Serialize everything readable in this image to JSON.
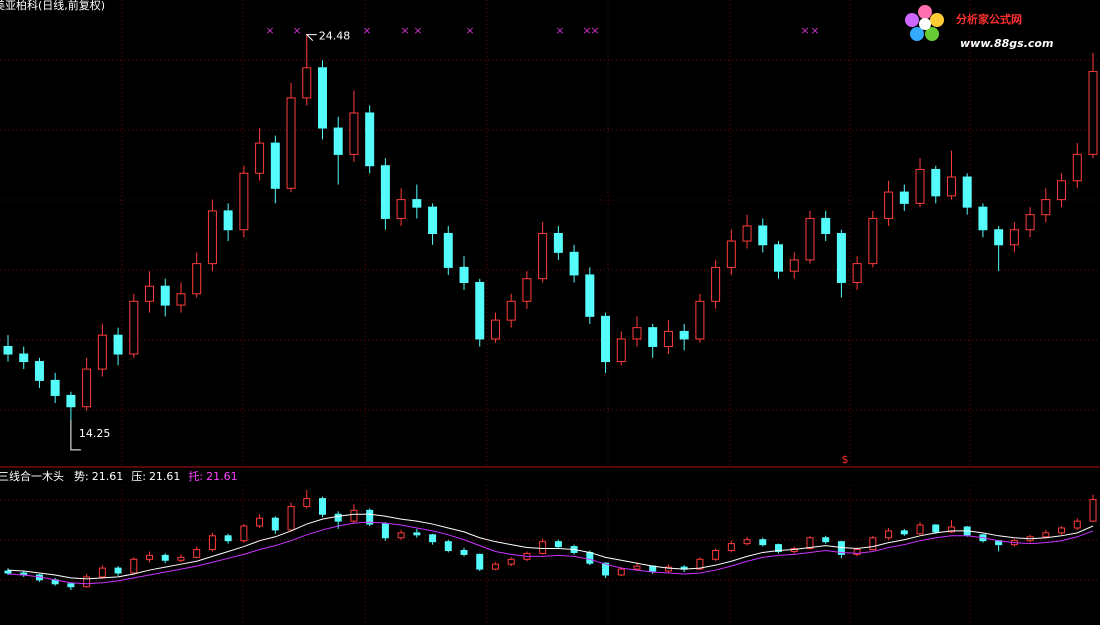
{
  "chart_data": {
    "type": "candlestick",
    "title": "美亚柏科(日线,前复权)",
    "logo": {
      "name": "分析家公式网",
      "url": "www.88gs.com"
    },
    "ylim": [
      13.0,
      25.4
    ],
    "up_color": "#ff3c3c",
    "down_color": "#54fcfc",
    "candles": [
      [
        16.2,
        16.5,
        15.8,
        16.0
      ],
      [
        16.0,
        16.2,
        15.6,
        15.8
      ],
      [
        15.8,
        15.9,
        15.1,
        15.3
      ],
      [
        15.3,
        15.5,
        14.7,
        14.9
      ],
      [
        14.9,
        15.0,
        14.25,
        14.6
      ],
      [
        14.6,
        15.9,
        14.5,
        15.6
      ],
      [
        15.6,
        16.8,
        15.4,
        16.5
      ],
      [
        16.5,
        16.7,
        15.7,
        16.0
      ],
      [
        16.0,
        17.6,
        15.9,
        17.4
      ],
      [
        17.4,
        18.2,
        17.1,
        17.8
      ],
      [
        17.8,
        18.0,
        17.0,
        17.3
      ],
      [
        17.3,
        17.9,
        17.1,
        17.6
      ],
      [
        17.6,
        18.7,
        17.5,
        18.4
      ],
      [
        18.4,
        20.1,
        18.2,
        19.8
      ],
      [
        19.8,
        20.0,
        19.0,
        19.3
      ],
      [
        19.3,
        21.0,
        19.1,
        20.8
      ],
      [
        20.8,
        22.0,
        20.6,
        21.6
      ],
      [
        21.6,
        21.8,
        20.0,
        20.4
      ],
      [
        20.4,
        23.2,
        20.3,
        22.8
      ],
      [
        22.8,
        24.48,
        22.6,
        23.6
      ],
      [
        23.6,
        23.8,
        21.7,
        22.0
      ],
      [
        22.0,
        22.3,
        20.5,
        21.3
      ],
      [
        21.3,
        23.0,
        21.1,
        22.4
      ],
      [
        22.4,
        22.6,
        20.8,
        21.0
      ],
      [
        21.0,
        21.2,
        19.3,
        19.6
      ],
      [
        19.6,
        20.4,
        19.4,
        20.1
      ],
      [
        20.1,
        20.5,
        19.6,
        19.9
      ],
      [
        19.9,
        20.0,
        18.9,
        19.2
      ],
      [
        19.2,
        19.4,
        18.1,
        18.3
      ],
      [
        18.3,
        18.6,
        17.7,
        17.9
      ],
      [
        17.9,
        18.0,
        16.2,
        16.4
      ],
      [
        16.4,
        17.1,
        16.3,
        16.9
      ],
      [
        16.9,
        17.6,
        16.7,
        17.4
      ],
      [
        17.4,
        18.2,
        17.2,
        18.0
      ],
      [
        18.0,
        19.5,
        17.9,
        19.2
      ],
      [
        19.2,
        19.4,
        18.5,
        18.7
      ],
      [
        18.7,
        18.9,
        17.9,
        18.1
      ],
      [
        18.1,
        18.3,
        16.8,
        17.0
      ],
      [
        17.0,
        17.1,
        15.5,
        15.8
      ],
      [
        15.8,
        16.6,
        15.7,
        16.4
      ],
      [
        16.4,
        17.0,
        16.2,
        16.7
      ],
      [
        16.7,
        16.8,
        15.9,
        16.2
      ],
      [
        16.2,
        16.9,
        16.0,
        16.6
      ],
      [
        16.6,
        16.8,
        16.1,
        16.4
      ],
      [
        16.4,
        17.6,
        16.3,
        17.4
      ],
      [
        17.4,
        18.5,
        17.2,
        18.3
      ],
      [
        18.3,
        19.3,
        18.1,
        19.0
      ],
      [
        19.0,
        19.7,
        18.8,
        19.4
      ],
      [
        19.4,
        19.6,
        18.7,
        18.9
      ],
      [
        18.9,
        19.0,
        18.0,
        18.2
      ],
      [
        18.2,
        18.7,
        18.0,
        18.5
      ],
      [
        18.5,
        19.8,
        18.4,
        19.6
      ],
      [
        19.6,
        19.8,
        19.0,
        19.2
      ],
      [
        19.2,
        19.3,
        17.5,
        17.9
      ],
      [
        17.9,
        18.6,
        17.7,
        18.4
      ],
      [
        18.4,
        19.8,
        18.3,
        19.6
      ],
      [
        19.6,
        20.6,
        19.4,
        20.3
      ],
      [
        20.3,
        20.5,
        19.8,
        20.0
      ],
      [
        20.0,
        21.2,
        19.9,
        20.9
      ],
      [
        20.9,
        21.0,
        20.0,
        20.2
      ],
      [
        20.2,
        21.4,
        20.1,
        20.7
      ],
      [
        20.7,
        20.8,
        19.7,
        19.9
      ],
      [
        19.9,
        20.0,
        19.1,
        19.3
      ],
      [
        19.3,
        19.4,
        18.2,
        18.9
      ],
      [
        18.9,
        19.5,
        18.7,
        19.3
      ],
      [
        19.3,
        19.9,
        19.1,
        19.7
      ],
      [
        19.7,
        20.4,
        19.5,
        20.1
      ],
      [
        20.1,
        20.8,
        19.9,
        20.6
      ],
      [
        20.6,
        21.6,
        20.4,
        21.3
      ],
      [
        21.3,
        24.0,
        21.2,
        23.5
      ]
    ],
    "high_label": 24.48,
    "high_index": 19,
    "low_label": 14.25,
    "low_index": 4,
    "signal": "$",
    "lower": {
      "name": "三线合一木头",
      "ylim": [
        11.2,
        25.5
      ],
      "items": [
        {
          "label": "势:",
          "value": 21.61,
          "color": "#ffffff"
        },
        {
          "label": "压:",
          "value": 21.61,
          "color": "#ffffff"
        },
        {
          "label": "托:",
          "value": 21.61,
          "color": "#ff44ff"
        }
      ],
      "lines": [
        {
          "color": "#ffffff",
          "values": [
            16.3,
            16.2,
            16.0,
            15.8,
            15.5,
            15.4,
            15.5,
            15.6,
            15.9,
            16.3,
            16.6,
            16.9,
            17.2,
            17.7,
            18.2,
            18.7,
            19.3,
            19.7,
            20.3,
            21.0,
            21.5,
            21.8,
            22.0,
            22.0,
            21.8,
            21.5,
            21.3,
            21.0,
            20.6,
            20.2,
            19.6,
            19.2,
            18.9,
            18.6,
            18.5,
            18.5,
            18.4,
            18.1,
            17.6,
            17.3,
            17.0,
            16.7,
            16.5,
            16.4,
            16.5,
            16.8,
            17.2,
            17.7,
            18.1,
            18.3,
            18.4,
            18.6,
            18.8,
            18.6,
            18.5,
            18.7,
            19.1,
            19.4,
            19.8,
            20.1,
            20.3,
            20.3,
            20.1,
            19.8,
            19.6,
            19.5,
            19.6,
            19.8,
            20.1,
            20.8
          ]
        },
        {
          "color": "#cc33ff",
          "values": [
            15.9,
            15.8,
            15.6,
            15.3,
            15.0,
            14.9,
            15.0,
            15.2,
            15.5,
            15.8,
            16.1,
            16.4,
            16.7,
            17.1,
            17.5,
            17.9,
            18.4,
            18.8,
            19.3,
            19.9,
            20.4,
            20.8,
            21.1,
            21.2,
            21.1,
            20.9,
            20.6,
            20.3,
            19.9,
            19.4,
            18.8,
            18.2,
            17.9,
            17.7,
            17.7,
            17.8,
            17.7,
            17.4,
            16.9,
            16.5,
            16.3,
            16.1,
            16.0,
            15.9,
            16.0,
            16.3,
            16.7,
            17.2,
            17.6,
            17.8,
            17.9,
            18.1,
            18.3,
            18.1,
            18.0,
            18.2,
            18.6,
            18.9,
            19.3,
            19.6,
            19.8,
            19.8,
            19.6,
            19.3,
            19.1,
            19.0,
            19.1,
            19.3,
            19.7,
            20.3
          ]
        }
      ]
    }
  }
}
